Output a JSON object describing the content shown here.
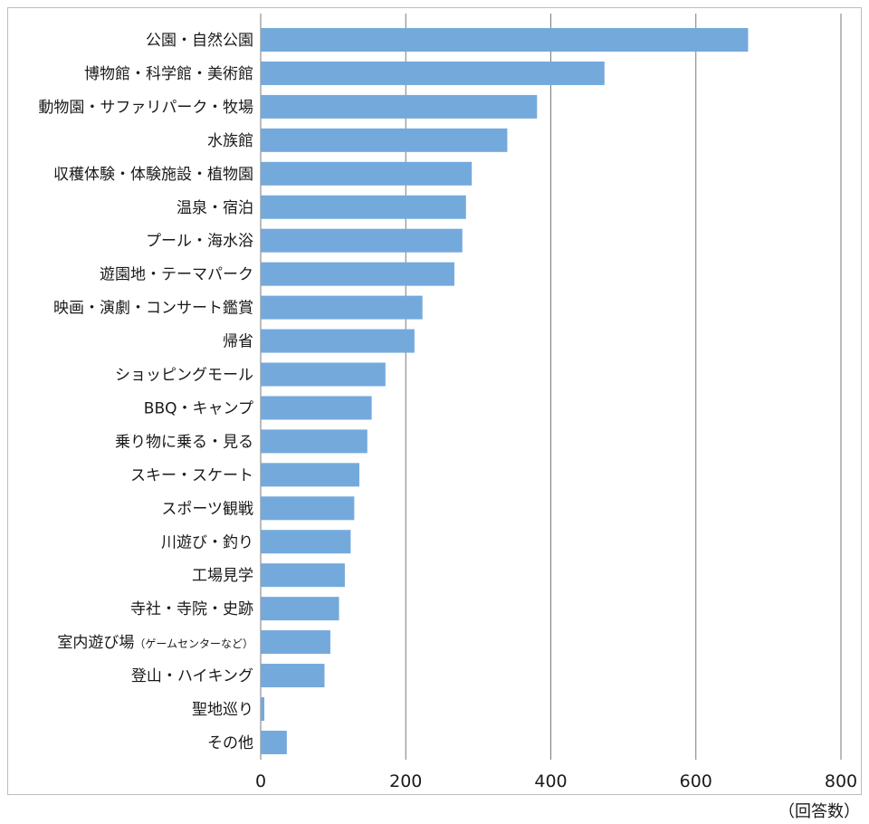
{
  "chart_data": {
    "type": "bar",
    "orientation": "horizontal",
    "categories": [
      "公園・自然公園",
      "博物館・科学館・美術館",
      "動物園・サファリパーク・牧場",
      "水族館",
      "収穫体験・体験施設・植物園",
      "温泉・宿泊",
      "プール・海水浴",
      "遊園地・テーマパーク",
      "映画・演劇・コンサート鑑賞",
      "帰省",
      "ショッピングモール",
      "BBQ・キャンプ",
      "乗り物に乗る・見る",
      "スキー・スケート",
      "スポーツ観戦",
      "川遊び・釣り",
      "工場見学",
      "寺社・寺院・史跡",
      "室内遊び場（ゲームセンターなど）",
      "登山・ハイキング",
      "聖地巡り",
      "その他"
    ],
    "category_parts": [
      [
        "公園・自然公園",
        ""
      ],
      [
        "博物館・科学館・美術館",
        ""
      ],
      [
        "動物園・サファリパーク・牧場",
        ""
      ],
      [
        "水族館",
        ""
      ],
      [
        "収穫体験・体験施設・植物園",
        ""
      ],
      [
        "温泉・宿泊",
        ""
      ],
      [
        "プール・海水浴",
        ""
      ],
      [
        "遊園地・テーマパーク",
        ""
      ],
      [
        "映画・演劇・コンサート鑑賞",
        ""
      ],
      [
        "帰省",
        ""
      ],
      [
        "ショッピングモール",
        ""
      ],
      [
        "BBQ・キャンプ",
        ""
      ],
      [
        "乗り物に乗る・見る",
        ""
      ],
      [
        "スキー・スケート",
        ""
      ],
      [
        "スポーツ観戦",
        ""
      ],
      [
        "川遊び・釣り",
        ""
      ],
      [
        "工場見学",
        ""
      ],
      [
        "寺社・寺院・史跡",
        ""
      ],
      [
        "室内遊び場",
        "（ゲームセンターなど）"
      ],
      [
        "登山・ハイキング",
        ""
      ],
      [
        "聖地巡り",
        ""
      ],
      [
        "その他",
        ""
      ]
    ],
    "values": [
      672,
      474,
      381,
      340,
      291,
      283,
      278,
      267,
      223,
      212,
      172,
      153,
      147,
      136,
      129,
      124,
      116,
      108,
      96,
      88,
      5,
      36
    ],
    "x_ticks": [
      0,
      200,
      400,
      600,
      800
    ],
    "xlim": [
      0,
      800
    ],
    "x_unit_label": "（回答数）",
    "bar_color": "#74a9dc",
    "grid": true,
    "grid_color": "#7a7a7a"
  }
}
